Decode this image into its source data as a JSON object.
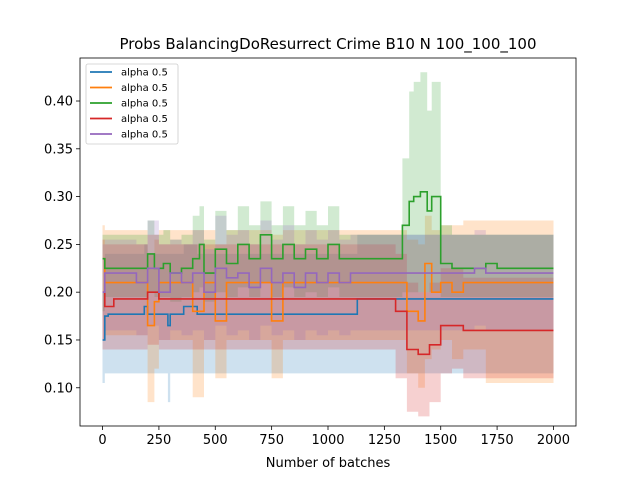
{
  "chart_data": {
    "type": "line",
    "title": "Probs BalancingDoResurrect Crime B10 N 100_100_100",
    "xlabel": "Number of batches",
    "ylabel": "",
    "xlim": [
      -100,
      2100
    ],
    "ylim": [
      0.06,
      0.445
    ],
    "xticks": [
      0,
      250,
      500,
      750,
      1000,
      1250,
      1500,
      1750,
      2000
    ],
    "yticks": [
      0.1,
      0.15,
      0.2,
      0.25,
      0.3,
      0.35,
      0.4
    ],
    "xtick_labels": [
      "0",
      "250",
      "500",
      "750",
      "1000",
      "1250",
      "1500",
      "1750",
      "2000"
    ],
    "ytick_labels": [
      "0.10",
      "0.15",
      "0.20",
      "0.25",
      "0.30",
      "0.35",
      "0.40"
    ],
    "legend_position": "upper-left",
    "grid": false,
    "series": [
      {
        "name": "alpha 0.5",
        "color": "#1f77b4",
        "x": [
          0,
          10,
          25,
          60,
          100,
          150,
          185,
          200,
          220,
          250,
          290,
          300,
          360,
          420,
          450,
          500,
          600,
          700,
          800,
          900,
          1000,
          1100,
          1130,
          1150,
          1200,
          1300,
          1400,
          1500,
          1600,
          1700,
          1800,
          1900,
          2000
        ],
        "values": [
          0.15,
          0.175,
          0.177,
          0.177,
          0.177,
          0.177,
          0.185,
          0.177,
          0.177,
          0.177,
          0.165,
          0.177,
          0.185,
          0.177,
          0.177,
          0.177,
          0.177,
          0.177,
          0.177,
          0.177,
          0.177,
          0.177,
          0.193,
          0.193,
          0.193,
          0.193,
          0.193,
          0.193,
          0.193,
          0.193,
          0.193,
          0.193,
          0.193
        ],
        "lower": [
          0.105,
          0.115,
          0.115,
          0.115,
          0.115,
          0.115,
          0.115,
          0.115,
          0.115,
          0.115,
          0.085,
          0.115,
          0.115,
          0.115,
          0.115,
          0.115,
          0.115,
          0.115,
          0.115,
          0.115,
          0.115,
          0.115,
          0.115,
          0.115,
          0.115,
          0.115,
          0.115,
          0.115,
          0.115,
          0.115,
          0.115,
          0.115,
          0.115
        ],
        "upper": [
          0.2,
          0.24,
          0.24,
          0.24,
          0.24,
          0.24,
          0.25,
          0.24,
          0.24,
          0.24,
          0.24,
          0.24,
          0.25,
          0.24,
          0.24,
          0.24,
          0.24,
          0.24,
          0.24,
          0.24,
          0.24,
          0.24,
          0.26,
          0.26,
          0.26,
          0.26,
          0.26,
          0.26,
          0.26,
          0.26,
          0.26,
          0.26,
          0.26
        ]
      },
      {
        "name": "alpha 0.5",
        "color": "#ff7f0e",
        "x": [
          0,
          10,
          50,
          100,
          150,
          200,
          230,
          250,
          300,
          400,
          450,
          500,
          550,
          600,
          700,
          750,
          800,
          900,
          1000,
          1100,
          1200,
          1300,
          1350,
          1400,
          1430,
          1460,
          1500,
          1550,
          1600,
          1650,
          1700,
          1800,
          1900,
          2000
        ],
        "values": [
          0.235,
          0.21,
          0.21,
          0.21,
          0.21,
          0.165,
          0.19,
          0.21,
          0.21,
          0.18,
          0.21,
          0.17,
          0.21,
          0.21,
          0.21,
          0.17,
          0.21,
          0.21,
          0.21,
          0.21,
          0.21,
          0.21,
          0.18,
          0.17,
          0.23,
          0.2,
          0.21,
          0.2,
          0.21,
          0.21,
          0.21,
          0.21,
          0.21,
          0.21
        ],
        "lower": [
          0.15,
          0.155,
          0.155,
          0.155,
          0.155,
          0.085,
          0.12,
          0.15,
          0.15,
          0.09,
          0.15,
          0.11,
          0.15,
          0.15,
          0.15,
          0.11,
          0.15,
          0.15,
          0.15,
          0.15,
          0.15,
          0.15,
          0.115,
          0.1,
          0.13,
          0.14,
          0.15,
          0.13,
          0.14,
          0.14,
          0.105,
          0.105,
          0.105,
          0.105
        ],
        "upper": [
          0.27,
          0.265,
          0.265,
          0.265,
          0.265,
          0.24,
          0.255,
          0.265,
          0.265,
          0.265,
          0.265,
          0.25,
          0.265,
          0.265,
          0.265,
          0.26,
          0.265,
          0.265,
          0.265,
          0.265,
          0.265,
          0.265,
          0.255,
          0.25,
          0.28,
          0.265,
          0.27,
          0.27,
          0.275,
          0.275,
          0.275,
          0.275,
          0.275,
          0.275
        ]
      },
      {
        "name": "alpha 0.5",
        "color": "#2ca02c",
        "x": [
          0,
          10,
          50,
          100,
          150,
          200,
          230,
          270,
          300,
          350,
          400,
          430,
          450,
          500,
          550,
          600,
          650,
          700,
          750,
          800,
          850,
          900,
          950,
          1000,
          1050,
          1100,
          1150,
          1200,
          1250,
          1300,
          1330,
          1360,
          1380,
          1410,
          1440,
          1460,
          1500,
          1550,
          1600,
          1650,
          1700,
          1750,
          1800,
          1900,
          2000
        ],
        "values": [
          0.235,
          0.225,
          0.225,
          0.225,
          0.225,
          0.24,
          0.225,
          0.23,
          0.22,
          0.225,
          0.235,
          0.25,
          0.22,
          0.245,
          0.23,
          0.25,
          0.235,
          0.26,
          0.235,
          0.25,
          0.235,
          0.245,
          0.235,
          0.25,
          0.235,
          0.235,
          0.235,
          0.235,
          0.235,
          0.235,
          0.27,
          0.295,
          0.3,
          0.305,
          0.285,
          0.3,
          0.23,
          0.225,
          0.225,
          0.225,
          0.23,
          0.225,
          0.225,
          0.225,
          0.225
        ],
        "lower": [
          0.18,
          0.195,
          0.195,
          0.195,
          0.195,
          0.2,
          0.195,
          0.195,
          0.19,
          0.195,
          0.2,
          0.205,
          0.19,
          0.2,
          0.195,
          0.205,
          0.195,
          0.21,
          0.195,
          0.205,
          0.195,
          0.2,
          0.195,
          0.205,
          0.195,
          0.195,
          0.195,
          0.195,
          0.195,
          0.195,
          0.2,
          0.2,
          0.2,
          0.2,
          0.2,
          0.2,
          0.195,
          0.195,
          0.195,
          0.195,
          0.195,
          0.195,
          0.195,
          0.195,
          0.195
        ],
        "upper": [
          0.26,
          0.26,
          0.26,
          0.26,
          0.26,
          0.275,
          0.26,
          0.265,
          0.255,
          0.26,
          0.28,
          0.29,
          0.255,
          0.285,
          0.265,
          0.29,
          0.27,
          0.295,
          0.27,
          0.29,
          0.27,
          0.285,
          0.27,
          0.29,
          0.26,
          0.26,
          0.26,
          0.26,
          0.26,
          0.26,
          0.34,
          0.41,
          0.42,
          0.43,
          0.39,
          0.42,
          0.27,
          0.26,
          0.26,
          0.26,
          0.26,
          0.26,
          0.26,
          0.26,
          0.26
        ]
      },
      {
        "name": "alpha 0.5",
        "color": "#d62728",
        "x": [
          0,
          10,
          50,
          100,
          150,
          200,
          250,
          300,
          350,
          400,
          450,
          500,
          600,
          700,
          800,
          900,
          1000,
          1100,
          1200,
          1300,
          1350,
          1400,
          1450,
          1500,
          1550,
          1600,
          1650,
          1700,
          1750,
          1800,
          1900,
          2000
        ],
        "values": [
          0.2,
          0.185,
          0.193,
          0.193,
          0.193,
          0.2,
          0.193,
          0.193,
          0.193,
          0.193,
          0.193,
          0.193,
          0.193,
          0.193,
          0.193,
          0.193,
          0.193,
          0.193,
          0.193,
          0.18,
          0.14,
          0.135,
          0.145,
          0.165,
          0.165,
          0.16,
          0.16,
          0.16,
          0.16,
          0.16,
          0.16,
          0.16
        ],
        "lower": [
          0.14,
          0.14,
          0.14,
          0.14,
          0.14,
          0.145,
          0.14,
          0.14,
          0.14,
          0.14,
          0.14,
          0.14,
          0.14,
          0.14,
          0.14,
          0.14,
          0.14,
          0.14,
          0.14,
          0.11,
          0.075,
          0.07,
          0.085,
          0.115,
          0.12,
          0.11,
          0.11,
          0.11,
          0.11,
          0.11,
          0.11,
          0.11
        ],
        "upper": [
          0.255,
          0.25,
          0.25,
          0.25,
          0.25,
          0.26,
          0.25,
          0.25,
          0.25,
          0.25,
          0.25,
          0.25,
          0.25,
          0.25,
          0.25,
          0.25,
          0.25,
          0.25,
          0.25,
          0.24,
          0.21,
          0.2,
          0.21,
          0.225,
          0.225,
          0.215,
          0.215,
          0.215,
          0.215,
          0.215,
          0.215,
          0.215
        ]
      },
      {
        "name": "alpha 0.5",
        "color": "#9467bd",
        "x": [
          0,
          10,
          50,
          100,
          150,
          200,
          250,
          300,
          350,
          400,
          450,
          500,
          550,
          600,
          650,
          700,
          750,
          800,
          850,
          900,
          950,
          1000,
          1050,
          1100,
          1150,
          1200,
          1250,
          1300,
          1400,
          1500,
          1600,
          1650,
          1700,
          1800,
          1900,
          2000
        ],
        "values": [
          0.2,
          0.22,
          0.22,
          0.22,
          0.21,
          0.225,
          0.2,
          0.22,
          0.21,
          0.22,
          0.2,
          0.225,
          0.215,
          0.22,
          0.205,
          0.225,
          0.21,
          0.22,
          0.205,
          0.22,
          0.21,
          0.22,
          0.21,
          0.22,
          0.22,
          0.22,
          0.22,
          0.22,
          0.22,
          0.22,
          0.22,
          0.225,
          0.22,
          0.22,
          0.22,
          0.22
        ],
        "lower": [
          0.15,
          0.16,
          0.16,
          0.16,
          0.155,
          0.165,
          0.15,
          0.16,
          0.155,
          0.16,
          0.15,
          0.165,
          0.155,
          0.16,
          0.15,
          0.165,
          0.155,
          0.16,
          0.15,
          0.16,
          0.155,
          0.16,
          0.155,
          0.16,
          0.16,
          0.16,
          0.16,
          0.16,
          0.16,
          0.16,
          0.16,
          0.165,
          0.16,
          0.16,
          0.16,
          0.16
        ],
        "upper": [
          0.25,
          0.255,
          0.255,
          0.255,
          0.25,
          0.275,
          0.25,
          0.255,
          0.25,
          0.265,
          0.245,
          0.28,
          0.26,
          0.265,
          0.25,
          0.275,
          0.255,
          0.27,
          0.25,
          0.265,
          0.255,
          0.265,
          0.255,
          0.26,
          0.26,
          0.26,
          0.26,
          0.26,
          0.26,
          0.26,
          0.26,
          0.265,
          0.26,
          0.26,
          0.26,
          0.26
        ]
      }
    ]
  }
}
